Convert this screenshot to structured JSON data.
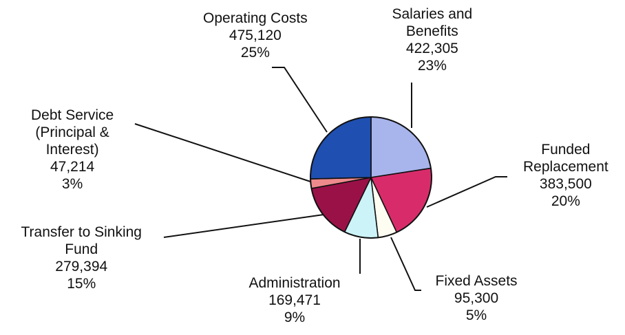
{
  "chart_data": {
    "type": "pie",
    "title": "",
    "slices": [
      {
        "name": "Salaries and Benefits",
        "name_lines": [
          "Salaries and",
          "Benefits"
        ],
        "value": 422305,
        "value_label": "422,305",
        "percent_label": "23%",
        "color": "#a8b4ec"
      },
      {
        "name": "Funded Replacement",
        "name_lines": [
          "Funded",
          "Replacement"
        ],
        "value": 383500,
        "value_label": "383,500",
        "percent_label": "20%",
        "color": "#d82c6a"
      },
      {
        "name": "Fixed Assets",
        "name_lines": [
          "Fixed Assets"
        ],
        "value": 95300,
        "value_label": "95,300",
        "percent_label": "5%",
        "color": "#fdfdf2"
      },
      {
        "name": "Administration",
        "name_lines": [
          "Administration"
        ],
        "value": 169471,
        "value_label": "169,471",
        "percent_label": "9%",
        "color": "#ccf4f8"
      },
      {
        "name": "Transfer to Sinking Fund",
        "name_lines": [
          "Transfer to Sinking",
          "Fund"
        ],
        "value": 279394,
        "value_label": "279,394",
        "percent_label": "15%",
        "color": "#9a1148"
      },
      {
        "name": "Debt Service (Principal & Interest)",
        "name_lines": [
          "Debt Service",
          "(Principal &",
          "Interest)"
        ],
        "value": 47214,
        "value_label": "47,214",
        "percent_label": "3%",
        "color": "#ef8a8c"
      },
      {
        "name": "Operating Costs",
        "name_lines": [
          "Operating Costs"
        ],
        "value": 475120,
        "value_label": "475,120",
        "percent_label": "25%",
        "color": "#1f4fb0"
      }
    ]
  }
}
